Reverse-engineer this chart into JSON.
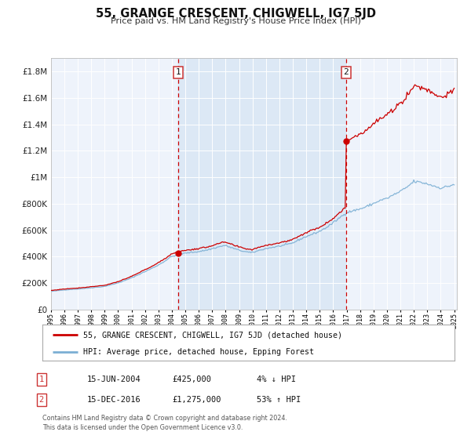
{
  "title": "55, GRANGE CRESCENT, CHIGWELL, IG7 5JD",
  "subtitle": "Price paid vs. HM Land Registry's House Price Index (HPI)",
  "legend_line1": "55, GRANGE CRESCENT, CHIGWELL, IG7 5JD (detached house)",
  "legend_line2": "HPI: Average price, detached house, Epping Forest",
  "annotation1_date": "15-JUN-2004",
  "annotation1_price": "£425,000",
  "annotation1_hpi": "4% ↓ HPI",
  "annotation2_date": "15-DEC-2016",
  "annotation2_price": "£1,275,000",
  "annotation2_hpi": "53% ↑ HPI",
  "footer1": "Contains HM Land Registry data © Crown copyright and database right 2024.",
  "footer2": "This data is licensed under the Open Government Licence v3.0.",
  "hpi_color": "#7bafd4",
  "price_color": "#cc0000",
  "vline_color": "#cc0000",
  "background_color": "#ffffff",
  "plot_bg_color": "#eef3fb",
  "shaded_region_color": "#dce8f5",
  "ylim_max": 1900000,
  "year_start": 1995,
  "year_end": 2025,
  "sale1_year": 2004.458,
  "sale1_value": 425000,
  "sale2_year": 2016.958,
  "sale2_value": 1275000
}
